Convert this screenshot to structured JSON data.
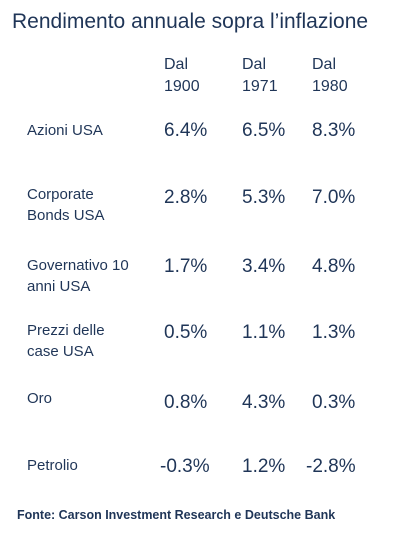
{
  "chart_data": {
    "type": "table",
    "title": "Rendimento annuale sopra l’inflazione",
    "columns": [
      {
        "line1": "Dal",
        "line2": "1900"
      },
      {
        "line1": "Dal",
        "line2": "1971"
      },
      {
        "line1": "Dal",
        "line2": "1980"
      }
    ],
    "rows": [
      {
        "label": [
          "Azioni USA"
        ],
        "values": [
          "6.4%",
          "6.5%",
          "8.3%"
        ]
      },
      {
        "label": [
          "Corporate",
          "Bonds USA"
        ],
        "values": [
          "2.8%",
          "5.3%",
          "7.0%"
        ]
      },
      {
        "label": [
          "Governativo 10",
          "anni USA"
        ],
        "values": [
          "1.7%",
          "3.4%",
          "4.8%"
        ]
      },
      {
        "label": [
          "Prezzi delle",
          "case USA"
        ],
        "values": [
          "0.5%",
          "1.1%",
          "1.3%"
        ]
      },
      {
        "label": [
          "Oro"
        ],
        "values": [
          "0.8%",
          "4.3%",
          "0.3%"
        ]
      },
      {
        "label": [
          "Petrolio"
        ],
        "values": [
          "-0.3%",
          "1.2%",
          "-2.8%"
        ]
      }
    ],
    "source": "Fonte: Carson Investment Research e Deutsche Bank"
  }
}
